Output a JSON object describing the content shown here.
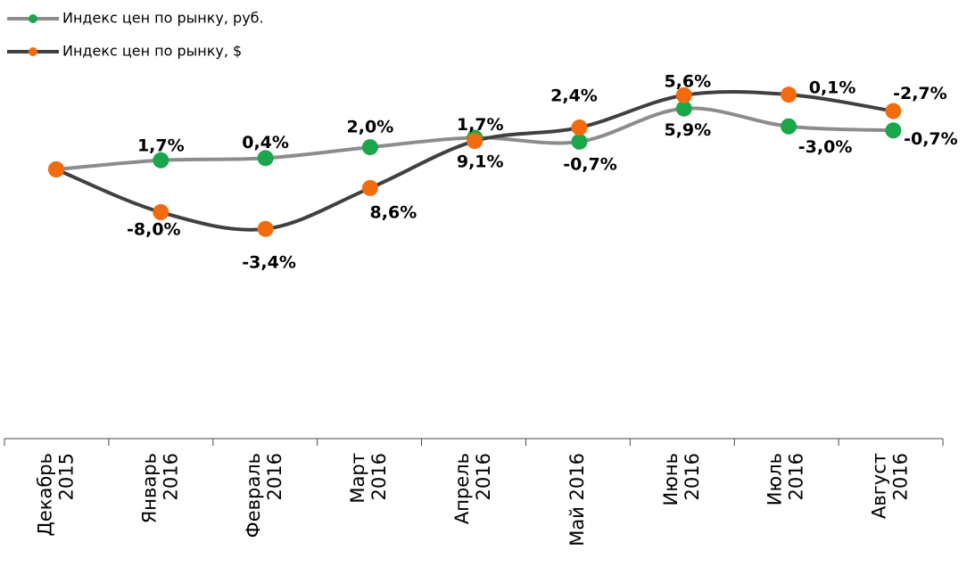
{
  "chart_data": {
    "type": "line",
    "categories": [
      "Декабрь\n2015",
      "Январь\n2016",
      "Февраль\n2016",
      "Март\n2016",
      "Апрель\n2016",
      "Май 2016",
      "Июнь\n2016",
      "Июль\n2016",
      "Август\n2016"
    ],
    "series": [
      {
        "name": "Индекс цен по рынку, руб.",
        "color": "#8c8c8c",
        "marker_color": "#1aa64a",
        "values": [
          0,
          1.7,
          0.4,
          2.0,
          1.7,
          -0.7,
          5.9,
          -3.0,
          -0.7
        ],
        "value_labels": [
          null,
          "1,7%",
          "0,4%",
          "2,0%",
          "1,7%",
          "-0,7%",
          "5,9%",
          "-3,0%",
          "-0,7%"
        ]
      },
      {
        "name": "Индекс цен по рынку, $",
        "color": "#404040",
        "marker_color": "#f26b0f",
        "values": [
          0,
          -8.0,
          -3.4,
          8.6,
          9.1,
          2.4,
          5.6,
          0.1,
          -2.7
        ],
        "value_labels": [
          null,
          "-8,0%",
          "-3,4%",
          "8,6%",
          "9,1%",
          "2,4%",
          "5,6%",
          "0,1%",
          "-2,7%"
        ]
      }
    ],
    "legend": "top-left"
  }
}
